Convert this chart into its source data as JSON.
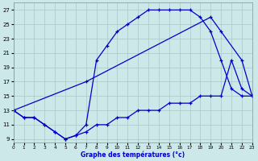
{
  "xlabel": "Graphe des températures (°c)",
  "bg_color": "#cce8e8",
  "grid_color": "#aac8c8",
  "line_color": "#0000cc",
  "xlim": [
    0,
    23
  ],
  "ylim": [
    8.5,
    28
  ],
  "xticks": [
    0,
    1,
    2,
    3,
    4,
    5,
    6,
    7,
    8,
    9,
    10,
    11,
    12,
    13,
    14,
    15,
    16,
    17,
    18,
    19,
    20,
    21,
    22,
    23
  ],
  "yticks": [
    9,
    11,
    13,
    15,
    17,
    19,
    21,
    23,
    25,
    27
  ],
  "upper_x": [
    0,
    1,
    2,
    3,
    4,
    5,
    6,
    7,
    8,
    9,
    10,
    11,
    12,
    13,
    14,
    15,
    16,
    17,
    18,
    19,
    20,
    21,
    22,
    23
  ],
  "upper_y": [
    13,
    12,
    12,
    11,
    10,
    9,
    9.5,
    11,
    20,
    22,
    24,
    25,
    26,
    27,
    27,
    27,
    27,
    27,
    26,
    24,
    20,
    16,
    15,
    15
  ],
  "lower_x": [
    0,
    1,
    2,
    3,
    4,
    5,
    6,
    7,
    8,
    9,
    10,
    11,
    12,
    13,
    14,
    15,
    16,
    17,
    18,
    19,
    20,
    21,
    22,
    23
  ],
  "lower_y": [
    13,
    12,
    12,
    11,
    10,
    9,
    9.5,
    10,
    11,
    11,
    12,
    12,
    13,
    13,
    13,
    14,
    14,
    14,
    15,
    15,
    15,
    20,
    16,
    15
  ],
  "diag_x": [
    0,
    7,
    19,
    20,
    22,
    23
  ],
  "diag_y": [
    13,
    17,
    26,
    24,
    20,
    15
  ]
}
